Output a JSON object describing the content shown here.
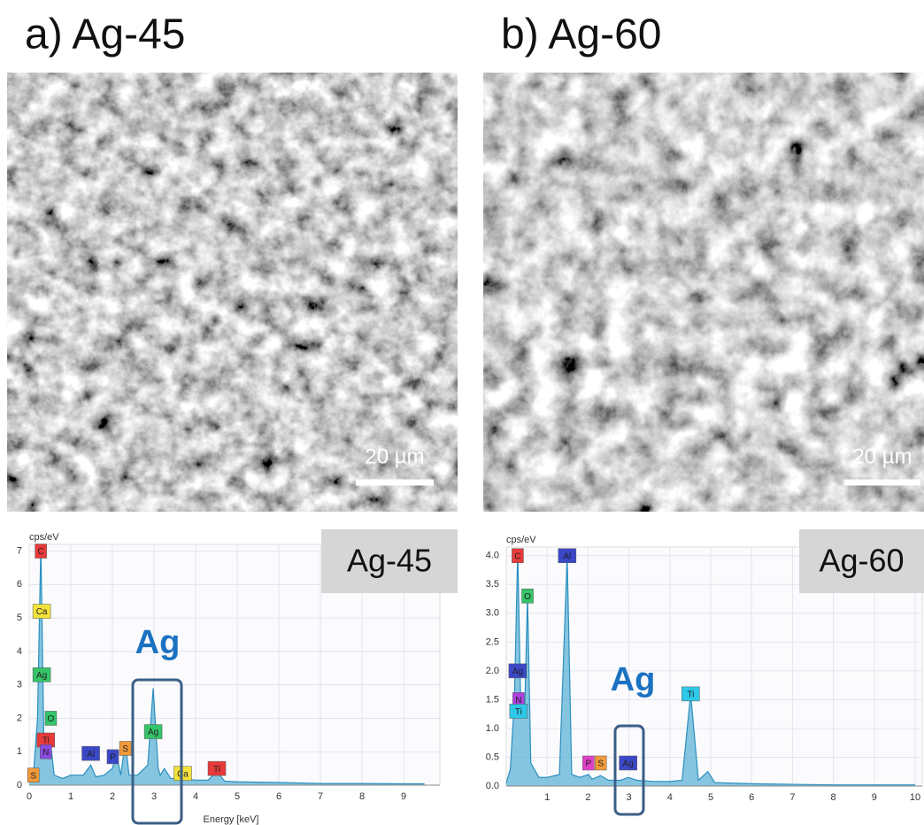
{
  "panels": [
    {
      "title": "a) Ag-45",
      "scale_bar": "20 µm",
      "spectrum": {
        "type": "line",
        "y_label": "cps/eV",
        "x_label": "Energy [keV]",
        "sample_label": "Ag-45",
        "highlight_label": "Ag",
        "xlim": [
          0,
          9.7
        ],
        "ylim": [
          0,
          7.2
        ],
        "xticks": [
          0,
          1,
          2,
          3,
          4,
          5,
          6,
          7,
          8,
          9
        ],
        "yticks": [
          0,
          1,
          2,
          3,
          4,
          5,
          6,
          7
        ],
        "x": [
          0,
          0.1,
          0.2,
          0.28,
          0.35,
          0.45,
          0.52,
          0.6,
          0.8,
          1.0,
          1.3,
          1.48,
          1.6,
          1.8,
          2.0,
          2.1,
          2.2,
          2.31,
          2.4,
          2.6,
          2.85,
          2.98,
          3.1,
          3.15,
          3.25,
          3.4,
          3.7,
          4.0,
          4.3,
          4.51,
          4.7,
          5,
          6,
          7,
          8,
          9,
          9.5
        ],
        "values": [
          0.1,
          0.3,
          2,
          7.2,
          1.5,
          0.8,
          1.2,
          0.3,
          0.2,
          0.3,
          0.3,
          0.6,
          0.25,
          0.3,
          0.5,
          0.9,
          0.3,
          1.3,
          0.3,
          0.3,
          0.6,
          2.9,
          0.5,
          0.3,
          0.5,
          0.2,
          0.2,
          0.15,
          0.15,
          0.4,
          0.12,
          0.1,
          0.08,
          0.05,
          0.05,
          0.04,
          0.04
        ],
        "peaks": [
          {
            "label": "C",
            "x": 0.28,
            "y": 7,
            "color": "#e83a3a"
          },
          {
            "label": "Ca",
            "x": 0.3,
            "y": 5.2,
            "color": "#f2e23a"
          },
          {
            "label": "Ag",
            "x": 0.3,
            "y": 3.3,
            "color": "#35c46a"
          },
          {
            "label": "O",
            "x": 0.52,
            "y": 2.0,
            "color": "#35c46a"
          },
          {
            "label": "Ti",
            "x": 0.4,
            "y": 1.35,
            "color": "#e83a3a"
          },
          {
            "label": "N",
            "x": 0.4,
            "y": 1.0,
            "color": "#8a4ae0"
          },
          {
            "label": "S",
            "x": 0.1,
            "y": 0.3,
            "color": "#f29a3a"
          },
          {
            "label": "Al",
            "x": 1.48,
            "y": 0.95,
            "color": "#3a48c8"
          },
          {
            "label": "P",
            "x": 2.01,
            "y": 0.85,
            "color": "#3a48c8"
          },
          {
            "label": "S",
            "x": 2.31,
            "y": 1.1,
            "color": "#f29a3a"
          },
          {
            "label": "Ag",
            "x": 2.98,
            "y": 1.6,
            "color": "#35c46a"
          },
          {
            "label": "Ca",
            "x": 3.69,
            "y": 0.35,
            "color": "#f2e23a"
          },
          {
            "label": "Ti",
            "x": 4.51,
            "y": 0.5,
            "color": "#e83a3a"
          }
        ]
      }
    },
    {
      "title": "b) Ag-60",
      "scale_bar": "20 µm",
      "spectrum": {
        "type": "line",
        "y_label": "cps/eV",
        "sample_label": "Ag-60",
        "highlight_label": "Ag",
        "xlim": [
          0,
          10
        ],
        "ylim": [
          0,
          4.15
        ],
        "xticks": [
          1,
          2,
          3,
          4,
          5,
          6,
          7,
          8,
          9,
          10
        ],
        "yticks": [
          {
            "value": 0,
            "label": "0.0"
          },
          0.5,
          {
            "value": 1,
            "label": "1.0"
          },
          1.5,
          {
            "value": 2,
            "label": "2.0"
          },
          2.5,
          {
            "value": 3,
            "label": "3.0"
          },
          3.5,
          {
            "value": 4,
            "label": "4.0"
          }
        ],
        "x": [
          0,
          0.1,
          0.2,
          0.28,
          0.36,
          0.45,
          0.52,
          0.6,
          0.8,
          1.0,
          1.3,
          1.49,
          1.6,
          1.8,
          2.01,
          2.1,
          2.31,
          2.5,
          2.8,
          2.98,
          3.2,
          3.6,
          4.0,
          4.3,
          4.51,
          4.7,
          4.93,
          5.1,
          6,
          7,
          8,
          9,
          10
        ],
        "values": [
          0.05,
          0.3,
          1.5,
          4.1,
          1.2,
          1.3,
          3.3,
          0.4,
          0.15,
          0.15,
          0.2,
          4.0,
          0.2,
          0.15,
          0.2,
          0.12,
          0.18,
          0.1,
          0.1,
          0.15,
          0.1,
          0.08,
          0.08,
          0.1,
          1.6,
          0.1,
          0.25,
          0.06,
          0.04,
          0.03,
          0.02,
          0.02,
          0.02
        ],
        "peaks": [
          {
            "label": "C",
            "x": 0.28,
            "y": 4.0,
            "color": "#e83a3a"
          },
          {
            "label": "O",
            "x": 0.52,
            "y": 3.3,
            "color": "#35c46a"
          },
          {
            "label": "Al",
            "x": 1.49,
            "y": 4.0,
            "color": "#3a48c8"
          },
          {
            "label": "Ag",
            "x": 0.28,
            "y": 2.0,
            "color": "#3a48c8"
          },
          {
            "label": "N",
            "x": 0.3,
            "y": 1.5,
            "color": "#b040e0"
          },
          {
            "label": "Ti",
            "x": 0.3,
            "y": 1.3,
            "color": "#2ec8e8"
          },
          {
            "label": "P",
            "x": 2.01,
            "y": 0.4,
            "color": "#e040c8"
          },
          {
            "label": "S",
            "x": 2.31,
            "y": 0.4,
            "color": "#f29a3a"
          },
          {
            "label": "Ag",
            "x": 2.98,
            "y": 0.4,
            "color": "#3a48c8"
          },
          {
            "label": "Ti",
            "x": 4.51,
            "y": 1.6,
            "color": "#2ec8e8"
          }
        ]
      }
    }
  ]
}
